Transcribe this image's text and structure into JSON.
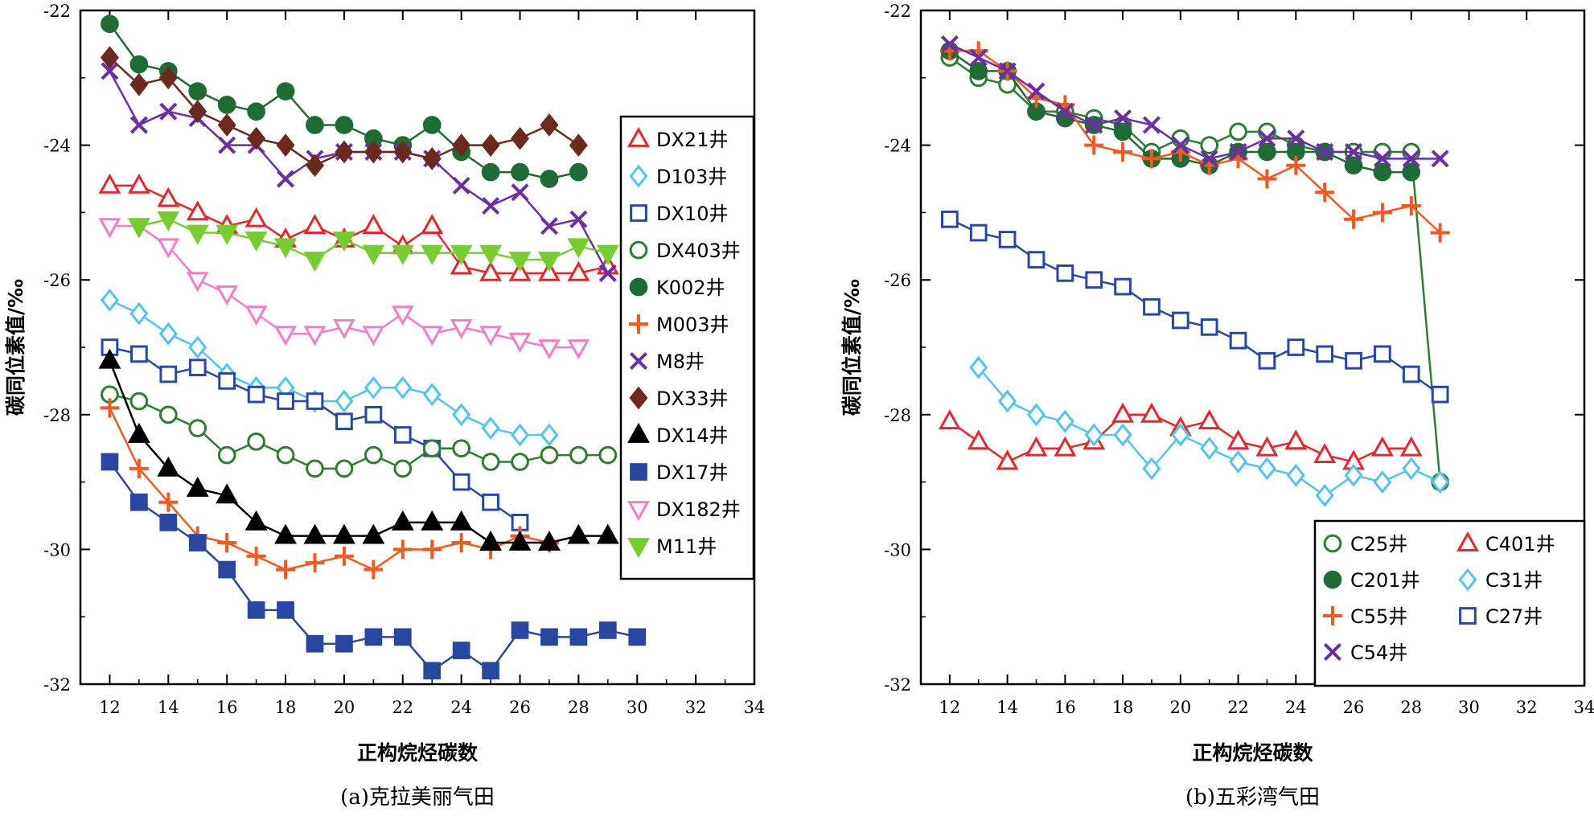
{
  "chart_data": [
    {
      "id": "a",
      "type": "line",
      "caption": "(a)克拉美丽气田",
      "xlabel": "正构烷烃碳数",
      "ylabel": "碳同位素值/‰",
      "xlim": [
        11,
        34
      ],
      "ylim": [
        -32,
        -22
      ],
      "xticks": [
        12,
        14,
        16,
        18,
        20,
        22,
        24,
        26,
        28,
        30,
        32,
        34
      ],
      "yticks": [
        -22,
        -24,
        -26,
        -28,
        -30,
        -32
      ],
      "legend_position": "right",
      "grid": false,
      "series": [
        {
          "name": "DX21井",
          "color": "#e8262b",
          "marker": "triangle-open",
          "x": [
            12,
            13,
            14,
            15,
            16,
            17,
            18,
            19,
            20,
            21,
            22,
            23,
            24,
            25,
            26,
            27,
            28,
            29
          ],
          "y": [
            -24.6,
            -24.6,
            -24.8,
            -25.0,
            -25.2,
            -25.1,
            -25.4,
            -25.2,
            -25.4,
            -25.2,
            -25.5,
            -25.2,
            -25.8,
            -25.9,
            -25.9,
            -25.9,
            -25.9,
            -25.8
          ]
        },
        {
          "name": "D103井",
          "color": "#52c4ee",
          "marker": "diamond-open",
          "x": [
            12,
            13,
            14,
            15,
            16,
            17,
            18,
            19,
            20,
            21,
            22,
            23,
            24,
            25,
            26,
            27
          ],
          "y": [
            -26.3,
            -26.5,
            -26.8,
            -27.0,
            -27.4,
            -27.6,
            -27.6,
            -27.8,
            -27.8,
            -27.6,
            -27.6,
            -27.7,
            -28.0,
            -28.2,
            -28.3,
            -28.3
          ]
        },
        {
          "name": "DX10井",
          "color": "#2947a8",
          "marker": "square-open",
          "x": [
            12,
            13,
            14,
            15,
            16,
            17,
            18,
            19,
            20,
            21,
            22,
            23,
            24,
            25,
            26
          ],
          "y": [
            -27.0,
            -27.1,
            -27.4,
            -27.3,
            -27.5,
            -27.7,
            -27.8,
            -27.8,
            -28.1,
            -28.0,
            -28.3,
            -28.5,
            -29.0,
            -29.3,
            -29.6
          ]
        },
        {
          "name": "DX403井",
          "color": "#2e7d32",
          "marker": "circle-open",
          "x": [
            12,
            13,
            14,
            15,
            16,
            17,
            18,
            19,
            20,
            21,
            22,
            23,
            24,
            25,
            26,
            27,
            28,
            29
          ],
          "y": [
            -27.7,
            -27.8,
            -28.0,
            -28.2,
            -28.6,
            -28.4,
            -28.6,
            -28.8,
            -28.8,
            -28.6,
            -28.8,
            -28.5,
            -28.5,
            -28.7,
            -28.7,
            -28.6,
            -28.6,
            -28.6
          ]
        },
        {
          "name": "K002井",
          "color": "#1f6b35",
          "marker": "circle-filled",
          "x": [
            12,
            13,
            14,
            15,
            16,
            17,
            18,
            19,
            20,
            21,
            22,
            23,
            24,
            25,
            26,
            27,
            28
          ],
          "y": [
            -22.2,
            -22.8,
            -22.9,
            -23.2,
            -23.4,
            -23.5,
            -23.2,
            -23.7,
            -23.7,
            -23.9,
            -24.0,
            -23.7,
            -24.1,
            -24.4,
            -24.4,
            -24.5,
            -24.4
          ]
        },
        {
          "name": "M003井",
          "color": "#f25a1f",
          "marker": "plus",
          "x": [
            12,
            13,
            14,
            15,
            16,
            17,
            18,
            19,
            20,
            21,
            22,
            23,
            24,
            25,
            26,
            27
          ],
          "y": [
            -27.9,
            -28.8,
            -29.3,
            -29.8,
            -29.9,
            -30.1,
            -30.3,
            -30.2,
            -30.1,
            -30.3,
            -30.0,
            -30.0,
            -29.9,
            -30.0,
            -29.8,
            -29.9
          ]
        },
        {
          "name": "M8井",
          "color": "#6a2fa4",
          "marker": "x",
          "x": [
            12,
            13,
            14,
            15,
            16,
            17,
            18,
            19,
            20,
            21,
            22,
            23,
            24,
            25,
            26,
            27,
            28,
            29
          ],
          "y": [
            -22.9,
            -23.7,
            -23.5,
            -23.6,
            -24.0,
            -24.0,
            -24.5,
            -24.2,
            -24.1,
            -24.1,
            -24.1,
            -24.2,
            -24.6,
            -24.9,
            -24.7,
            -25.2,
            -25.1,
            -25.9
          ]
        },
        {
          "name": "DX33井",
          "color": "#6b2a20",
          "marker": "diamond-filled",
          "x": [
            12,
            13,
            14,
            15,
            16,
            17,
            18,
            19,
            20,
            21,
            22,
            23,
            24,
            25,
            26,
            27,
            28
          ],
          "y": [
            -22.7,
            -23.1,
            -23.0,
            -23.5,
            -23.7,
            -23.9,
            -24.0,
            -24.3,
            -24.1,
            -24.1,
            -24.1,
            -24.2,
            -24.0,
            -24.0,
            -23.9,
            -23.7,
            -24.0
          ]
        },
        {
          "name": "DX14井",
          "color": "#000000",
          "marker": "triangle-filled",
          "x": [
            12,
            13,
            14,
            15,
            16,
            17,
            18,
            19,
            20,
            21,
            22,
            23,
            24,
            25,
            26,
            27,
            28,
            29
          ],
          "y": [
            -27.2,
            -28.3,
            -28.8,
            -29.1,
            -29.2,
            -29.6,
            -29.8,
            -29.8,
            -29.8,
            -29.8,
            -29.6,
            -29.6,
            -29.6,
            -29.9,
            -29.9,
            -29.9,
            -29.8,
            -29.8
          ]
        },
        {
          "name": "DX17井",
          "color": "#2947a0",
          "marker": "square-filled",
          "x": [
            12,
            13,
            14,
            15,
            16,
            17,
            18,
            19,
            20,
            21,
            22,
            23,
            24,
            25,
            26,
            27,
            28,
            29,
            30
          ],
          "y": [
            -28.7,
            -29.3,
            -29.6,
            -29.9,
            -30.3,
            -30.9,
            -30.9,
            -31.4,
            -31.4,
            -31.3,
            -31.3,
            -31.8,
            -31.5,
            -31.8,
            -31.2,
            -31.3,
            -31.3,
            -31.2,
            -31.3
          ]
        },
        {
          "name": "DX182井",
          "color": "#f27ec6",
          "marker": "triangle-down-open",
          "x": [
            12,
            13,
            14,
            15,
            16,
            17,
            18,
            19,
            20,
            21,
            22,
            23,
            24,
            25,
            26,
            27,
            28
          ],
          "y": [
            -25.2,
            -25.2,
            -25.5,
            -26.0,
            -26.2,
            -26.5,
            -26.8,
            -26.8,
            -26.7,
            -26.8,
            -26.5,
            -26.8,
            -26.7,
            -26.8,
            -26.9,
            -27.0,
            -27.0
          ]
        },
        {
          "name": "M11井",
          "color": "#77cd2f",
          "marker": "triangle-down-filled",
          "x": [
            13,
            14,
            15,
            16,
            17,
            18,
            19,
            20,
            21,
            22,
            23,
            24,
            25,
            26,
            27,
            28,
            29
          ],
          "y": [
            -25.2,
            -25.1,
            -25.3,
            -25.3,
            -25.4,
            -25.5,
            -25.7,
            -25.4,
            -25.6,
            -25.6,
            -25.6,
            -25.6,
            -25.6,
            -25.7,
            -25.7,
            -25.5,
            -25.6
          ]
        }
      ]
    },
    {
      "id": "b",
      "type": "line",
      "caption": "(b)五彩湾气田",
      "xlabel": "正构烷烃碳数",
      "ylabel": "碳同位素值/‰",
      "xlim": [
        11,
        34
      ],
      "ylim": [
        -32,
        -22
      ],
      "xticks": [
        12,
        14,
        16,
        18,
        20,
        22,
        24,
        26,
        28,
        30,
        32,
        34
      ],
      "yticks": [
        -22,
        -24,
        -26,
        -28,
        -30,
        -32
      ],
      "legend_position": "bottom-right",
      "grid": false,
      "series": [
        {
          "name": "C25井",
          "color": "#2e7d32",
          "marker": "circle-open",
          "x": [
            12,
            13,
            14,
            15,
            16,
            17,
            18,
            19,
            20,
            21,
            22,
            23,
            24,
            25,
            26,
            27,
            28,
            29
          ],
          "y": [
            -22.7,
            -23.0,
            -23.1,
            -23.5,
            -23.5,
            -23.6,
            -23.7,
            -24.1,
            -23.9,
            -24.0,
            -23.8,
            -23.8,
            -24.0,
            -24.1,
            -24.1,
            -24.1,
            -24.1,
            -29.0
          ]
        },
        {
          "name": "C401井",
          "color": "#e8262b",
          "marker": "triangle-open",
          "x": [
            12,
            13,
            14,
            15,
            16,
            17,
            18,
            19,
            20,
            21,
            22,
            23,
            24,
            25,
            26,
            27,
            28
          ],
          "y": [
            -28.1,
            -28.4,
            -28.7,
            -28.5,
            -28.5,
            -28.4,
            -28.0,
            -28.0,
            -28.2,
            -28.1,
            -28.4,
            -28.5,
            -28.4,
            -28.6,
            -28.7,
            -28.5,
            -28.5
          ]
        },
        {
          "name": "C201井",
          "color": "#1f6b35",
          "marker": "circle-filled",
          "x": [
            12,
            13,
            14,
            15,
            16,
            17,
            18,
            19,
            20,
            21,
            22,
            23,
            24,
            25,
            26,
            27,
            28
          ],
          "y": [
            -22.6,
            -22.9,
            -22.9,
            -23.5,
            -23.6,
            -23.7,
            -23.8,
            -24.2,
            -24.2,
            -24.3,
            -24.1,
            -24.1,
            -24.1,
            -24.1,
            -24.3,
            -24.4,
            -24.4
          ]
        },
        {
          "name": "C31井",
          "color": "#52c4ee",
          "marker": "diamond-open",
          "x": [
            13,
            14,
            15,
            16,
            17,
            18,
            19,
            20,
            21,
            22,
            23,
            24,
            25,
            26,
            27,
            28,
            29
          ],
          "y": [
            -27.3,
            -27.8,
            -28.0,
            -28.1,
            -28.3,
            -28.3,
            -28.8,
            -28.3,
            -28.5,
            -28.7,
            -28.8,
            -28.9,
            -29.2,
            -28.9,
            -29.0,
            -28.8,
            -29.0
          ]
        },
        {
          "name": "C55井",
          "color": "#f25a1f",
          "marker": "plus",
          "x": [
            12,
            13,
            14,
            15,
            16,
            17,
            18,
            19,
            20,
            21,
            22,
            23,
            24,
            25,
            26,
            27,
            28,
            29
          ],
          "y": [
            -22.6,
            -22.6,
            -22.9,
            -23.3,
            -23.4,
            -24.0,
            -24.1,
            -24.2,
            -24.1,
            -24.3,
            -24.2,
            -24.5,
            -24.3,
            -24.7,
            -25.1,
            -25.0,
            -24.9,
            -25.3
          ]
        },
        {
          "name": "C27井",
          "color": "#2947a8",
          "marker": "square-open",
          "x": [
            12,
            13,
            14,
            15,
            16,
            17,
            18,
            19,
            20,
            21,
            22,
            23,
            24,
            25,
            26,
            27,
            28,
            29
          ],
          "y": [
            -25.1,
            -25.3,
            -25.4,
            -25.7,
            -25.9,
            -26.0,
            -26.1,
            -26.4,
            -26.6,
            -26.7,
            -26.9,
            -27.2,
            -27.0,
            -27.1,
            -27.2,
            -27.1,
            -27.4,
            -27.7
          ]
        },
        {
          "name": "C54井",
          "color": "#6a2fa4",
          "marker": "x",
          "x": [
            12,
            13,
            14,
            15,
            16,
            17,
            18,
            19,
            20,
            21,
            22,
            23,
            24,
            25,
            26,
            27,
            28,
            29
          ],
          "y": [
            -22.5,
            -22.7,
            -22.9,
            -23.2,
            -23.5,
            -23.7,
            -23.6,
            -23.7,
            -24.0,
            -24.2,
            -24.1,
            -23.9,
            -23.9,
            -24.1,
            -24.1,
            -24.2,
            -24.2,
            -24.2
          ]
        }
      ]
    }
  ]
}
